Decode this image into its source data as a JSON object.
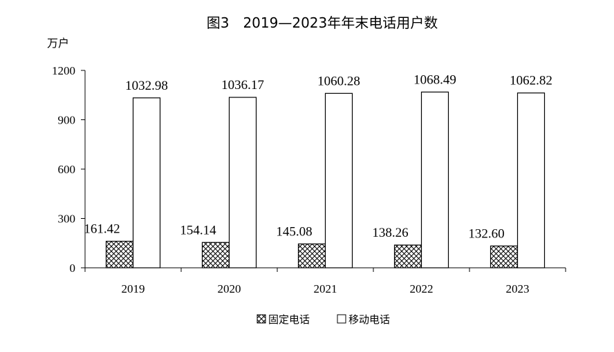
{
  "chart_data": {
    "type": "bar",
    "title": "图3　2019—2023年年末电话用户数",
    "ylabel": "万户",
    "xlabel": "",
    "categories": [
      "2019",
      "2020",
      "2021",
      "2022",
      "2023"
    ],
    "ylim": [
      0,
      1200
    ],
    "yticks": [
      0,
      300,
      600,
      900,
      1200
    ],
    "grid": false,
    "legend_position": "bottom",
    "series": [
      {
        "name": "固定电话",
        "values": [
          161.42,
          154.14,
          145.08,
          138.26,
          132.6
        ],
        "value_labels": [
          "161.42",
          "154.14",
          "145.08",
          "138.26",
          "132.60"
        ],
        "fill": "crosshatch"
      },
      {
        "name": "移动电话",
        "values": [
          1032.98,
          1036.17,
          1060.28,
          1068.49,
          1062.82
        ],
        "value_labels": [
          "1032.98",
          "1036.17",
          "1060.28",
          "1068.49",
          "1062.82"
        ],
        "fill": "white"
      }
    ]
  },
  "colors": {
    "stroke": "#000000",
    "background": "#ffffff"
  }
}
